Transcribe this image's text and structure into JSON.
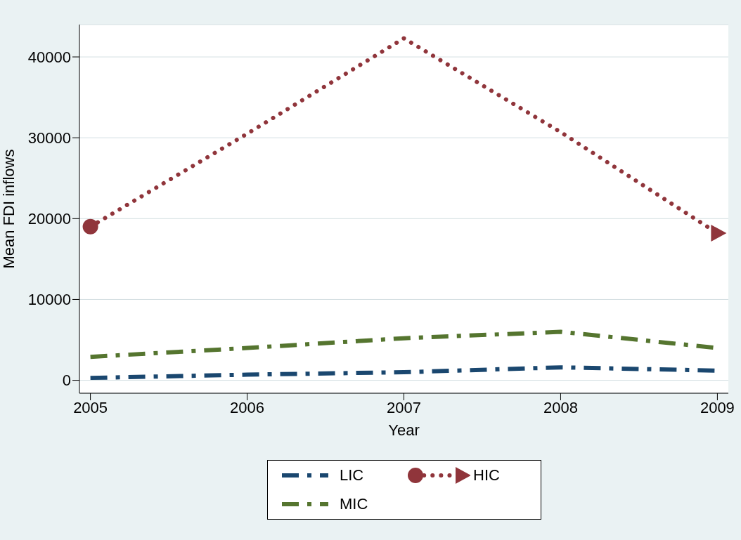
{
  "chart_data": {
    "type": "line",
    "xlabel": "Year",
    "ylabel": "Mean FDI inflows",
    "x": [
      2005,
      2006,
      2007,
      2008,
      2009
    ],
    "xlim": [
      2004.93,
      2009.07
    ],
    "xticks": [
      2005,
      2006,
      2007,
      2008,
      2009
    ],
    "ylim": [
      -1600,
      44000
    ],
    "yticks": [
      0,
      10000,
      20000,
      30000,
      40000
    ],
    "grid": "y",
    "legend": "bottom",
    "series": [
      {
        "name": "LIC",
        "color": "#1a476f",
        "values": [
          300,
          700,
          1000,
          1600,
          1200
        ],
        "line_style": "dashed"
      },
      {
        "name": "HIC",
        "color": "#90353b",
        "values": [
          19000,
          30500,
          42300,
          30700,
          18200
        ],
        "line_style": "dotted",
        "marker": [
          "circle",
          null,
          null,
          null,
          "triangle"
        ]
      },
      {
        "name": "MIC",
        "color": "#55752f",
        "values": [
          2900,
          4000,
          5200,
          6000,
          4000
        ],
        "line_style": "dashed"
      }
    ]
  }
}
